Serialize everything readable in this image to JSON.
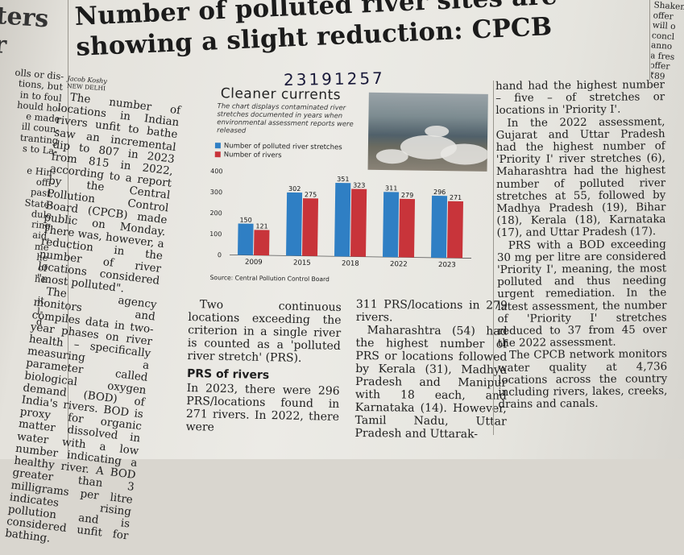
{
  "headline": {
    "line1": "Number of polluted river sites are",
    "line2": "showing a slight reduction: CPCB"
  },
  "byline": {
    "author": "Jacob Koshy",
    "city": "NEW DELHI"
  },
  "handwritten_note": "23191257",
  "left_clip": {
    "head1": "ters",
    "head2": "r",
    "lines": [
      "olls or dis-",
      "tions, but",
      "in to foul",
      "hould ho-",
      "e made",
      "ill coun-",
      "tranting",
      "s to La-",
      "",
      "e Hin-",
      "offi-",
      "past,",
      "State-",
      "dule",
      "ring",
      "aid,",
      "me",
      "he",
      "of",
      "he",
      "",
      "it",
      "l-",
      "d"
    ]
  },
  "right_clip": {
    "lines": [
      "Shaken",
      "offer",
      "will o",
      "concl",
      "anno",
      "a fres",
      "offer",
      "₹89"
    ]
  },
  "col1": {
    "p1": "The number of locations in Indian rivers unfit to bathe saw an incremental dip to 807 in 2023 from 815 in 2022, according to a report by the Central Pollution Control Board (CPCB) made public on Monday. There was, however, a reduction in the number of river locations considered \"most polluted\".",
    "p2": "The agency monitors and compiles data in two-year phases on river health – specifically measuring a parameter called biological oxygen demand (BOD) of India's rivers. BOD is proxy for organic matter dissolved in water with a low number indicating a healthy river. A BOD greater than 3 milligrams per litre indicates rising pollution and is considered unfit for bathing."
  },
  "col2": {
    "p1": "Two continuous locations exceeding the criterion in a single river is counted as a 'polluted river stretch' (PRS).",
    "sub": "PRS of rivers",
    "p2": "In 2023, there were 296 PRS/locations found in 271 rivers. In 2022, there were"
  },
  "col3": {
    "p1": "311 PRS/locations in 279 rivers.",
    "p2": "Maharashtra (54) had the highest number of PRS or locations followed by Kerala (31), Madhya Pradesh and Manipur with 18 each, and Karnataka (14). However, Tamil Nadu, Uttar Pradesh and Uttarak-"
  },
  "col4": {
    "p1": "hand had the highest number – five – of stretches or locations in 'Priority I'.",
    "p2": "In the 2022 assessment, Gujarat and Uttar Pradesh had the highest number of 'Priority I' river stretches (6), Maharashtra had the highest number of polluted river stretches at 55, followed by Madhya Pradesh (19), Bihar (18), Kerala (18), Karnataka (17), and Uttar Pradesh (17).",
    "p3": "PRS with a BOD exceeding 30 mg per litre are considered 'Priority I', meaning, the most polluted and thus needing urgent remediation. In the latest assessment, the number of 'Priority I' stretches reduced to 37 from 45 over the 2022 assessment.",
    "p4": "The CPCB network monitors water quality at 4,736 locations across the country including rivers, lakes, creeks, drains and canals."
  },
  "chart_box": {
    "title": "Cleaner currents",
    "description": "The chart displays contaminated river stretches documented in years when environmental assessment reports were released",
    "source": "Source: Central Pollution Control Board"
  },
  "chart_data": {
    "type": "bar",
    "categories": [
      "2009",
      "2015",
      "2018",
      "2022",
      "2023"
    ],
    "series": [
      {
        "name": "Number of polluted river stretches",
        "values": [
          150,
          302,
          351,
          311,
          296
        ],
        "color": "#2f7fc4"
      },
      {
        "name": "Number of rivers",
        "values": [
          121,
          275,
          323,
          279,
          271
        ],
        "color": "#c8343a"
      }
    ],
    "yticks": [
      0,
      100,
      200,
      300,
      400
    ],
    "ylim": [
      0,
      400
    ],
    "grid": false,
    "legend": "top-left"
  }
}
